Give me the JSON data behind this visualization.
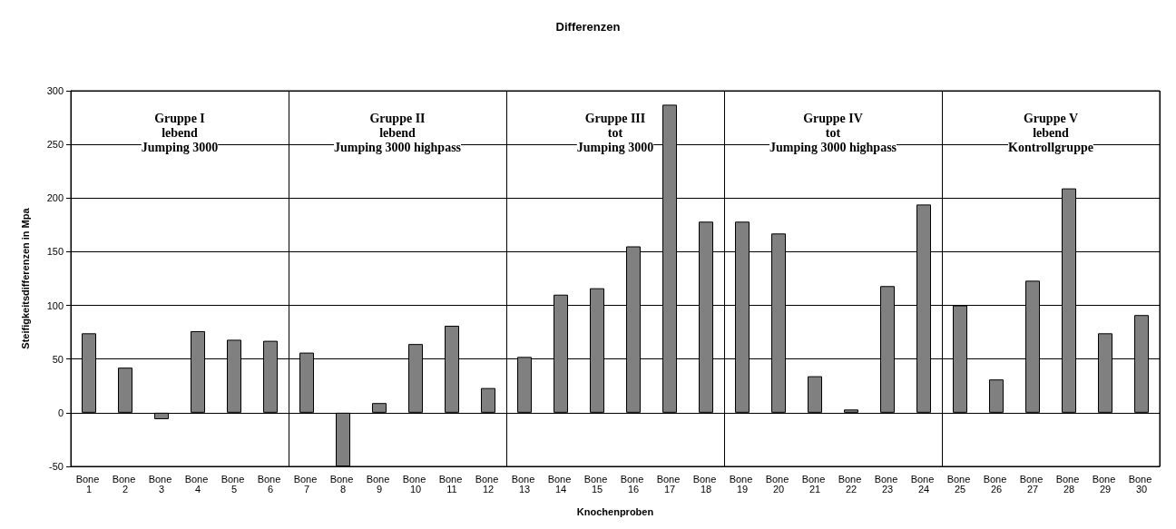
{
  "chart_data": {
    "type": "bar",
    "title": "Differenzen",
    "xlabel": "Knochenproben",
    "ylabel": "Steifigkeitsdifferenzen in Mpa",
    "categories": [
      "Bone 1",
      "Bone 2",
      "Bone 3",
      "Bone 4",
      "Bone 5",
      "Bone 6",
      "Bone 7",
      "Bone 8",
      "Bone 9",
      "Bone 10",
      "Bone 11",
      "Bone 12",
      "Bone 13",
      "Bone 14",
      "Bone 15",
      "Bone 16",
      "Bone 17",
      "Bone 18",
      "Bone 19",
      "Bone 20",
      "Bone 21",
      "Bone 22",
      "Bone 23",
      "Bone 24",
      "Bone 25",
      "Bone 26",
      "Bone 27",
      "Bone 28",
      "Bone 29",
      "Bone 30"
    ],
    "values": [
      74,
      42,
      -6,
      76,
      68,
      67,
      56,
      -50,
      9,
      64,
      81,
      23,
      52,
      110,
      116,
      155,
      287,
      178,
      178,
      167,
      34,
      3,
      118,
      194,
      100,
      31,
      123,
      209,
      74,
      91
    ],
    "color": "#808080",
    "ylim": [
      -50,
      300
    ],
    "yticks": [
      -50,
      0,
      50,
      100,
      150,
      200,
      250,
      300
    ],
    "grid": true,
    "annotations": [
      "Gruppe I\nlebend\nJumping 3000",
      "Gruppe II\nlebend\nJumping 3000 highpass",
      "Gruppe III\ntot\nJumping 3000",
      "Gruppe IV\ntot\nJumping 3000 highpass",
      "Gruppe V\nlebend\nKontrollgruppe"
    ]
  }
}
